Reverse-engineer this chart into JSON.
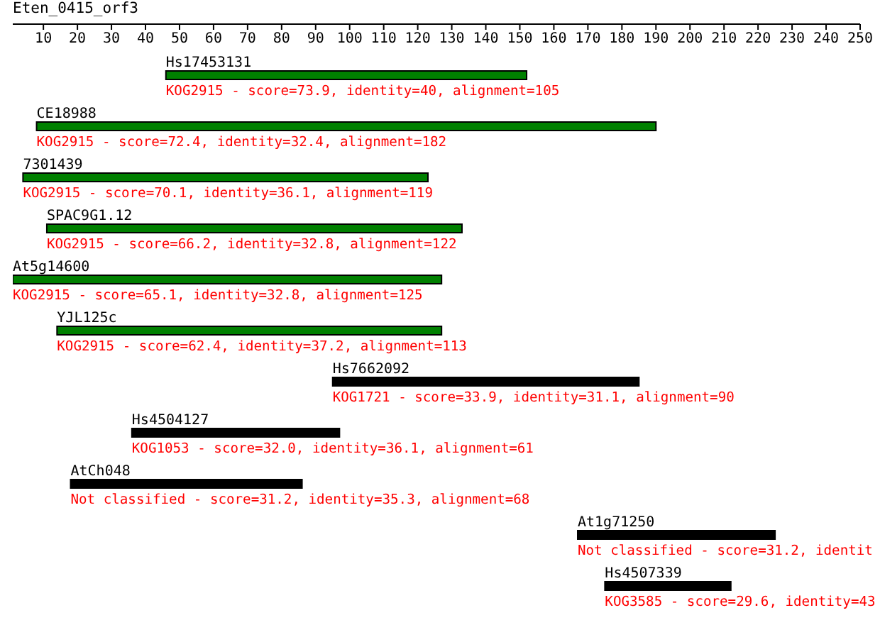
{
  "chart_data": {
    "type": "bar",
    "orientation": "horizontal",
    "title": "Eten_0415_orf3",
    "categories": [
      "Hs17453131",
      "CE18988",
      "7301439",
      "SPAC9G1.12",
      "At5g14600",
      "YJL125c",
      "Hs7662092",
      "Hs4504127",
      "AtCh048",
      "At1g71250",
      "Hs4507339"
    ],
    "base": [
      46,
      8,
      4,
      11,
      1,
      14,
      95,
      36,
      18,
      167,
      175
    ],
    "values": [
      106,
      182,
      119,
      122,
      126,
      113,
      90,
      61,
      68,
      58,
      37
    ],
    "colors": [
      "#008000",
      "#008000",
      "#008000",
      "#008000",
      "#008000",
      "#008000",
      "#000000",
      "#000000",
      "#000000",
      "#000000",
      "#000000"
    ],
    "annotations": [
      {
        "text": "KOG2915 - score=73.9, identity=40, alignment=105",
        "x": 46,
        "y": "Hs17453131"
      },
      {
        "text": "KOG2915 - score=72.4, identity=32.4, alignment=182",
        "x": 8,
        "y": "CE18988"
      },
      {
        "text": "KOG2915 - score=70.1, identity=36.1, alignment=119",
        "x": 4,
        "y": "7301439"
      },
      {
        "text": "KOG2915 - score=66.2, identity=32.8, alignment=122",
        "x": 11,
        "y": "SPAC9G1.12"
      },
      {
        "text": "KOG2915 - score=65.1, identity=32.8, alignment=125",
        "x": 1,
        "y": "At5g14600"
      },
      {
        "text": "KOG2915 - score=62.4, identity=37.2, alignment=113",
        "x": 14,
        "y": "YJL125c"
      },
      {
        "text": "KOG1721 - score=33.9, identity=31.1, alignment=90",
        "x": 95,
        "y": "Hs7662092"
      },
      {
        "text": "KOG1053 - score=32.0, identity=36.1, alignment=61",
        "x": 36,
        "y": "Hs4504127"
      },
      {
        "text": "Not classified - score=31.2, identity=35.3, alignment=68",
        "x": 18,
        "y": "AtCh048"
      },
      {
        "text": "Not classified - score=31.2, identit",
        "x": 167,
        "y": "At1g71250"
      },
      {
        "text": "KOG3585 - score=29.6, identity=43",
        "x": 175,
        "y": "Hs4507339"
      }
    ],
    "xlim": [
      1,
      250
    ],
    "xticks": [
      10,
      20,
      30,
      40,
      50,
      60,
      70,
      80,
      90,
      100,
      110,
      120,
      130,
      140,
      150,
      160,
      170,
      180,
      190,
      200,
      210,
      220,
      230,
      240,
      250
    ]
  }
}
